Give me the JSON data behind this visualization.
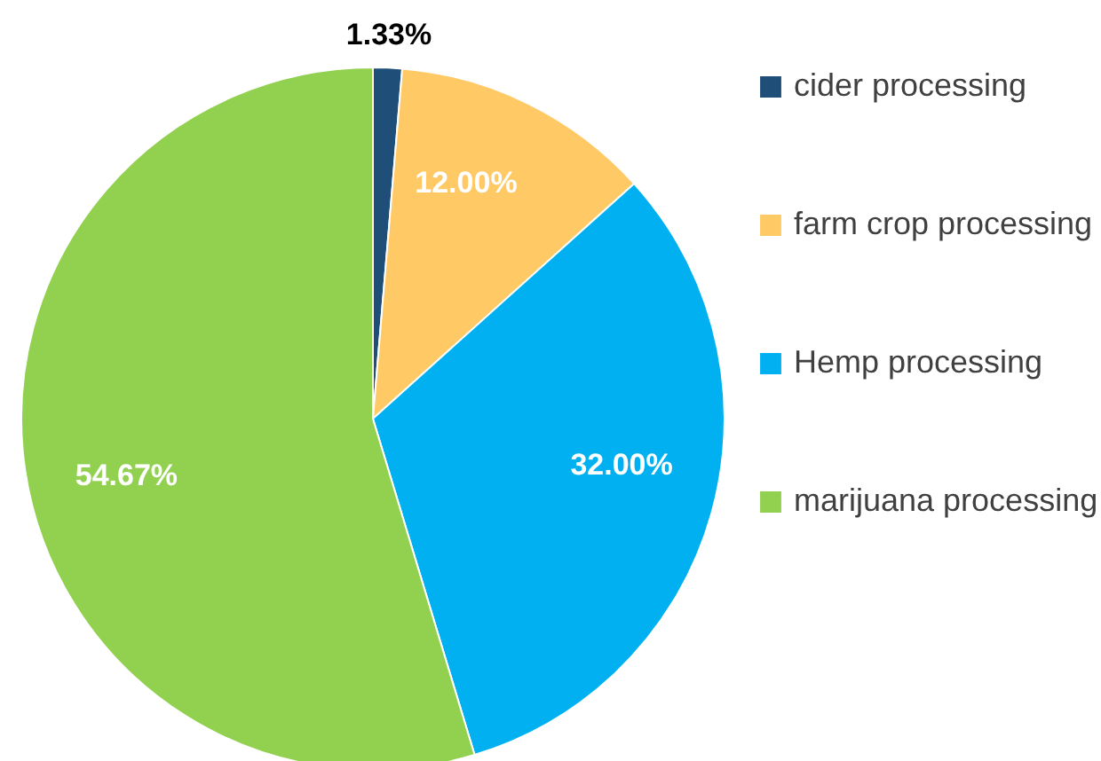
{
  "chart_data": {
    "type": "pie",
    "categories": [
      "cider processing",
      "farm crop processing",
      "Hemp processing",
      "marijuana processing"
    ],
    "values": [
      1.33,
      12.0,
      32.0,
      54.67
    ],
    "colors": [
      "#1f4e79",
      "#ffc966",
      "#00b0f0",
      "#92d050"
    ],
    "value_labels": [
      "1.33%",
      "12.00%",
      "32.00%",
      "54.67%"
    ],
    "legend": "right"
  }
}
